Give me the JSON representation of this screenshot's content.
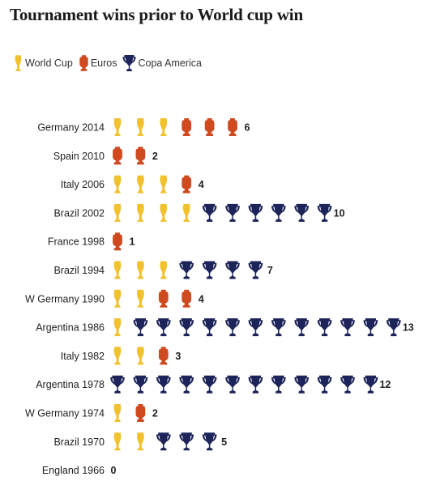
{
  "title": "Tournament wins prior to World cup win",
  "colors": {
    "world_cup": "#f2c12e",
    "euros": "#cf4a1f",
    "copa_america": "#1d2459"
  },
  "legend": [
    {
      "key": "world_cup",
      "label": "World Cup",
      "icon": "world-cup-trophy-icon"
    },
    {
      "key": "euros",
      "label": "Euros",
      "icon": "euros-trophy-icon"
    },
    {
      "key": "copa_america",
      "label": "Copa America",
      "icon": "copa-america-trophy-icon"
    }
  ],
  "chart_data": {
    "type": "pictograph",
    "title": "Tournament wins prior to World cup win",
    "legend_position": "top-left",
    "series_names": [
      "World Cup",
      "Euros",
      "Copa America"
    ],
    "rows": [
      {
        "label": "Germany 2014",
        "world_cup": 3,
        "euros": 3,
        "copa_america": 0,
        "total": 6
      },
      {
        "label": "Spain 2010",
        "world_cup": 0,
        "euros": 2,
        "copa_america": 0,
        "total": 2
      },
      {
        "label": "Italy 2006",
        "world_cup": 3,
        "euros": 1,
        "copa_america": 0,
        "total": 4
      },
      {
        "label": "Brazil 2002",
        "world_cup": 4,
        "euros": 0,
        "copa_america": 6,
        "total": 10
      },
      {
        "label": "France 1998",
        "world_cup": 0,
        "euros": 1,
        "copa_america": 0,
        "total": 1
      },
      {
        "label": "Brazil 1994",
        "world_cup": 3,
        "euros": 0,
        "copa_america": 4,
        "total": 7
      },
      {
        "label": "W Germany 1990",
        "world_cup": 2,
        "euros": 2,
        "copa_america": 0,
        "total": 4
      },
      {
        "label": "Argentina 1986",
        "world_cup": 1,
        "euros": 0,
        "copa_america": 12,
        "total": 13
      },
      {
        "label": "Italy 1982",
        "world_cup": 2,
        "euros": 1,
        "copa_america": 0,
        "total": 3
      },
      {
        "label": "Argentina 1978",
        "world_cup": 0,
        "euros": 0,
        "copa_america": 12,
        "total": 12
      },
      {
        "label": "W Germany 1974",
        "world_cup": 1,
        "euros": 1,
        "copa_america": 0,
        "total": 2
      },
      {
        "label": "Brazil 1970",
        "world_cup": 2,
        "euros": 0,
        "copa_america": 3,
        "total": 5
      },
      {
        "label": "England 1966",
        "world_cup": 0,
        "euros": 0,
        "copa_america": 0,
        "total": 0
      }
    ]
  }
}
